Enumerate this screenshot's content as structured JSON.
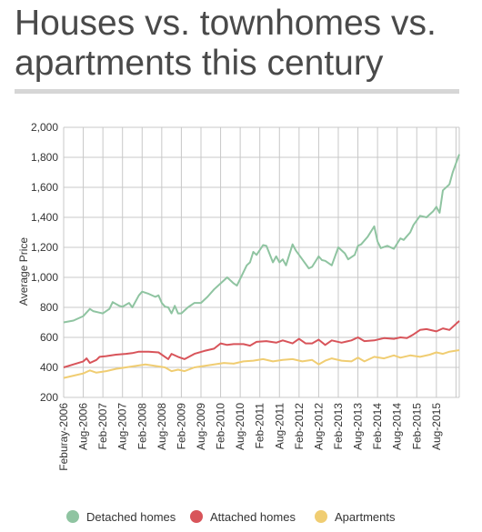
{
  "header": {
    "title": "Houses vs. townhomes vs. apartments this century"
  },
  "chart_data": {
    "type": "line",
    "ylabel": "Average Price",
    "xlabel": "",
    "ylim": [
      200,
      2000
    ],
    "yticks": [
      200,
      400,
      600,
      800,
      1000,
      1200,
      1400,
      1600,
      1800,
      2000
    ],
    "ytick_labels": [
      "200",
      "400",
      "600",
      "800",
      "1,000",
      "1,200",
      "1,400",
      "1,600",
      "1,800",
      "2,000"
    ],
    "grid": true,
    "legend_position": "bottom",
    "x_start": "2006-02",
    "x_end": "2016-03",
    "xtick_labels": [
      "Feburay-2006",
      "Aug-2006",
      "Feb-2007",
      "Aug-2007",
      "Feb-2008",
      "Aug-2008",
      "Feb-2009",
      "Aug-2009",
      "Feb-2010",
      "Aug-2010",
      "Feb-2011",
      "Aug-2011",
      "Feb-2012",
      "Aug-2012",
      "Feb-2013",
      "Aug-2013",
      "Feb-2014",
      "Aug-2014",
      "Feb-2015",
      "Aug-2015"
    ],
    "series": [
      {
        "name": "Detached homes",
        "color": "#8fc4a1",
        "points": [
          [
            "2006-02",
            700
          ],
          [
            "2006-05",
            712
          ],
          [
            "2006-08",
            742
          ],
          [
            "2006-10",
            790
          ],
          [
            "2006-11",
            775
          ],
          [
            "2007-01",
            765
          ],
          [
            "2007-02",
            760
          ],
          [
            "2007-04",
            790
          ],
          [
            "2007-05",
            835
          ],
          [
            "2007-07",
            810
          ],
          [
            "2007-08",
            805
          ],
          [
            "2007-10",
            830
          ],
          [
            "2007-11",
            800
          ],
          [
            "2008-01",
            880
          ],
          [
            "2008-02",
            905
          ],
          [
            "2008-04",
            890
          ],
          [
            "2008-06",
            870
          ],
          [
            "2008-07",
            880
          ],
          [
            "2008-08",
            830
          ],
          [
            "2008-09",
            805
          ],
          [
            "2008-10",
            800
          ],
          [
            "2008-11",
            760
          ],
          [
            "2008-12",
            810
          ],
          [
            "2009-01",
            760
          ],
          [
            "2009-02",
            760
          ],
          [
            "2009-04",
            800
          ],
          [
            "2009-06",
            830
          ],
          [
            "2009-08",
            830
          ],
          [
            "2009-10",
            870
          ],
          [
            "2009-12",
            920
          ],
          [
            "2010-02",
            960
          ],
          [
            "2010-04",
            1000
          ],
          [
            "2010-06",
            960
          ],
          [
            "2010-07",
            945
          ],
          [
            "2010-08",
            990
          ],
          [
            "2010-10",
            1080
          ],
          [
            "2010-11",
            1100
          ],
          [
            "2010-12",
            1170
          ],
          [
            "2011-01",
            1150
          ],
          [
            "2011-03",
            1215
          ],
          [
            "2011-04",
            1210
          ],
          [
            "2011-06",
            1100
          ],
          [
            "2011-07",
            1140
          ],
          [
            "2011-08",
            1100
          ],
          [
            "2011-09",
            1120
          ],
          [
            "2011-10",
            1080
          ],
          [
            "2011-12",
            1220
          ],
          [
            "2012-01",
            1180
          ],
          [
            "2012-03",
            1120
          ],
          [
            "2012-05",
            1060
          ],
          [
            "2012-06",
            1070
          ],
          [
            "2012-08",
            1140
          ],
          [
            "2012-09",
            1115
          ],
          [
            "2012-10",
            1110
          ],
          [
            "2012-12",
            1080
          ],
          [
            "2013-02",
            1200
          ],
          [
            "2013-04",
            1160
          ],
          [
            "2013-05",
            1120
          ],
          [
            "2013-07",
            1150
          ],
          [
            "2013-08",
            1210
          ],
          [
            "2013-09",
            1220
          ],
          [
            "2013-11",
            1270
          ],
          [
            "2014-01",
            1340
          ],
          [
            "2014-02",
            1240
          ],
          [
            "2014-03",
            1195
          ],
          [
            "2014-05",
            1210
          ],
          [
            "2014-07",
            1190
          ],
          [
            "2014-09",
            1260
          ],
          [
            "2014-10",
            1250
          ],
          [
            "2014-12",
            1300
          ],
          [
            "2015-01",
            1350
          ],
          [
            "2015-03",
            1410
          ],
          [
            "2015-05",
            1400
          ],
          [
            "2015-07",
            1440
          ],
          [
            "2015-08",
            1470
          ],
          [
            "2015-09",
            1430
          ],
          [
            "2015-10",
            1580
          ],
          [
            "2015-12",
            1620
          ],
          [
            "2016-01",
            1700
          ],
          [
            "2016-03",
            1820
          ]
        ]
      },
      {
        "name": "Attached homes",
        "color": "#d8545a",
        "points": [
          [
            "2006-02",
            400
          ],
          [
            "2006-05",
            420
          ],
          [
            "2006-08",
            440
          ],
          [
            "2006-09",
            460
          ],
          [
            "2006-10",
            430
          ],
          [
            "2006-12",
            450
          ],
          [
            "2007-01",
            470
          ],
          [
            "2007-03",
            475
          ],
          [
            "2007-06",
            485
          ],
          [
            "2007-09",
            490
          ],
          [
            "2007-11",
            495
          ],
          [
            "2008-01",
            505
          ],
          [
            "2008-04",
            505
          ],
          [
            "2008-07",
            500
          ],
          [
            "2008-09",
            470
          ],
          [
            "2008-10",
            455
          ],
          [
            "2008-11",
            490
          ],
          [
            "2009-01",
            470
          ],
          [
            "2009-03",
            455
          ],
          [
            "2009-06",
            490
          ],
          [
            "2009-09",
            510
          ],
          [
            "2009-12",
            525
          ],
          [
            "2010-02",
            560
          ],
          [
            "2010-04",
            550
          ],
          [
            "2010-06",
            555
          ],
          [
            "2010-09",
            555
          ],
          [
            "2010-11",
            545
          ],
          [
            "2011-01",
            570
          ],
          [
            "2011-04",
            575
          ],
          [
            "2011-07",
            565
          ],
          [
            "2011-09",
            580
          ],
          [
            "2011-12",
            560
          ],
          [
            "2012-02",
            590
          ],
          [
            "2012-04",
            560
          ],
          [
            "2012-06",
            560
          ],
          [
            "2012-08",
            585
          ],
          [
            "2012-10",
            550
          ],
          [
            "2012-12",
            580
          ],
          [
            "2013-03",
            565
          ],
          [
            "2013-06",
            580
          ],
          [
            "2013-08",
            600
          ],
          [
            "2013-10",
            575
          ],
          [
            "2014-01",
            580
          ],
          [
            "2014-04",
            595
          ],
          [
            "2014-07",
            590
          ],
          [
            "2014-09",
            600
          ],
          [
            "2014-11",
            595
          ],
          [
            "2015-01",
            620
          ],
          [
            "2015-03",
            650
          ],
          [
            "2015-05",
            655
          ],
          [
            "2015-08",
            640
          ],
          [
            "2015-10",
            660
          ],
          [
            "2015-12",
            650
          ],
          [
            "2016-03",
            710
          ]
        ]
      },
      {
        "name": "Apartments",
        "color": "#f0cd72",
        "points": [
          [
            "2006-02",
            330
          ],
          [
            "2006-05",
            345
          ],
          [
            "2006-08",
            360
          ],
          [
            "2006-10",
            380
          ],
          [
            "2006-12",
            365
          ],
          [
            "2007-03",
            375
          ],
          [
            "2007-06",
            390
          ],
          [
            "2007-09",
            400
          ],
          [
            "2007-12",
            410
          ],
          [
            "2008-03",
            420
          ],
          [
            "2008-06",
            410
          ],
          [
            "2008-09",
            400
          ],
          [
            "2008-11",
            375
          ],
          [
            "2009-01",
            385
          ],
          [
            "2009-03",
            375
          ],
          [
            "2009-06",
            400
          ],
          [
            "2009-09",
            410
          ],
          [
            "2009-12",
            420
          ],
          [
            "2010-03",
            430
          ],
          [
            "2010-06",
            425
          ],
          [
            "2010-09",
            440
          ],
          [
            "2010-12",
            445
          ],
          [
            "2011-03",
            455
          ],
          [
            "2011-06",
            440
          ],
          [
            "2011-09",
            450
          ],
          [
            "2011-12",
            455
          ],
          [
            "2012-03",
            440
          ],
          [
            "2012-06",
            450
          ],
          [
            "2012-08",
            420
          ],
          [
            "2012-10",
            445
          ],
          [
            "2012-12",
            460
          ],
          [
            "2013-03",
            445
          ],
          [
            "2013-06",
            440
          ],
          [
            "2013-08",
            465
          ],
          [
            "2013-10",
            440
          ],
          [
            "2014-01",
            470
          ],
          [
            "2014-04",
            460
          ],
          [
            "2014-07",
            480
          ],
          [
            "2014-09",
            465
          ],
          [
            "2014-12",
            480
          ],
          [
            "2015-03",
            470
          ],
          [
            "2015-06",
            485
          ],
          [
            "2015-08",
            500
          ],
          [
            "2015-10",
            490
          ],
          [
            "2015-12",
            505
          ],
          [
            "2016-03",
            515
          ]
        ]
      }
    ]
  }
}
